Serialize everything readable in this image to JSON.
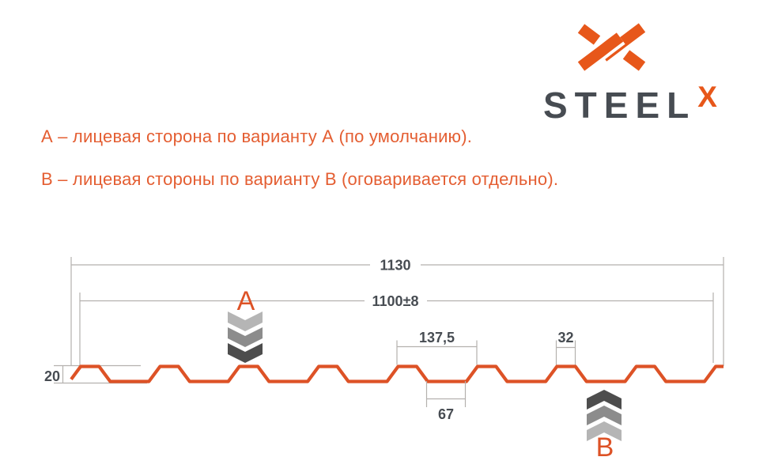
{
  "colors": {
    "orange_logo": "#e7571a",
    "orange_text": "#e45e32",
    "orange_line": "#dd5226",
    "dark": "#474c52",
    "dim_line": "#b4b1ae",
    "chevron_a": [
      "#b5b5b5",
      "#8c8c8c",
      "#4d4d4d"
    ],
    "chevron_b": [
      "#4d4d4d",
      "#8c8c8c",
      "#b5b5b5"
    ]
  },
  "logo": {
    "wordmark": "STEEL",
    "mark_letter": "X"
  },
  "notes": {
    "line_a": "А – лицевая сторона по варианту А (по умолчанию).",
    "line_b": "В – лицевая стороны по варианту В (оговаривается отдельно)."
  },
  "diagram": {
    "labels": {
      "overall_width": "1130",
      "useful_width": "1100±8",
      "pitch": "137,5",
      "rib_top_width": "32",
      "rib_bottom_width": "67",
      "profile_height": "20",
      "side_a": "A",
      "side_b": "B"
    },
    "profile": {
      "total_mm": 1130,
      "pitch_mm": 137.5,
      "crest_mm": 32,
      "slope_run_mm": 19.25,
      "valley_mm": 67,
      "height_mm": 20,
      "start_offset_mm": 16.4
    }
  }
}
